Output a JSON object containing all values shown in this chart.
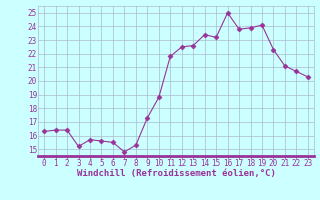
{
  "x": [
    0,
    1,
    2,
    3,
    4,
    5,
    6,
    7,
    8,
    9,
    10,
    11,
    12,
    13,
    14,
    15,
    16,
    17,
    18,
    19,
    20,
    21,
    22,
    23
  ],
  "y": [
    16.3,
    16.4,
    16.4,
    15.2,
    15.7,
    15.6,
    15.5,
    14.8,
    15.3,
    17.3,
    18.8,
    21.8,
    22.5,
    22.6,
    23.4,
    23.2,
    25.0,
    23.8,
    23.9,
    24.1,
    22.3,
    21.1,
    20.7,
    20.3
  ],
  "line_color": "#993399",
  "marker": "D",
  "marker_size": 2.5,
  "bg_color": "#ccffff",
  "grid_color": "#aabbcc",
  "spine_color": "#993399",
  "xlabel": "Windchill (Refroidissement éolien,°C)",
  "xlabel_fontsize": 6.5,
  "tick_fontsize": 5.5,
  "ylim": [
    14.5,
    25.5
  ],
  "yticks": [
    15,
    16,
    17,
    18,
    19,
    20,
    21,
    22,
    23,
    24,
    25
  ],
  "xticks": [
    0,
    1,
    2,
    3,
    4,
    5,
    6,
    7,
    8,
    9,
    10,
    11,
    12,
    13,
    14,
    15,
    16,
    17,
    18,
    19,
    20,
    21,
    22,
    23
  ],
  "xlim": [
    -0.5,
    23.5
  ]
}
